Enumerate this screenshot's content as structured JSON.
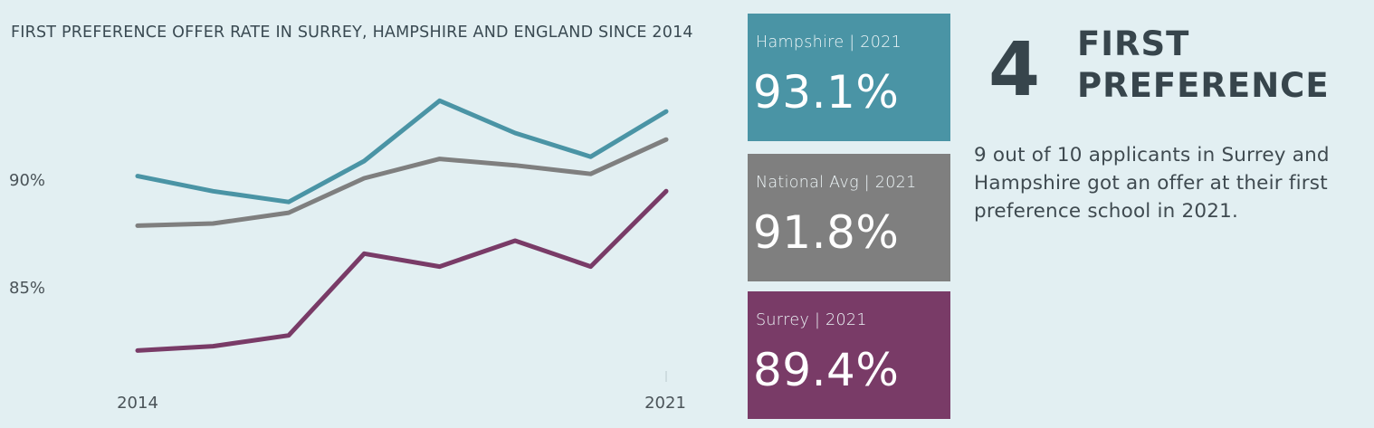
{
  "title": "FIRST PREFERENCE OFFER RATE IN SURREY, HAMPSHIRE AND ENGLAND SINCE 2014",
  "chart_data": {
    "type": "line",
    "title": "FIRST PREFERENCE OFFER RATE IN SURREY, HAMPSHIRE AND ENGLAND SINCE 2014",
    "xlabel": "",
    "ylabel": "",
    "x": [
      2014,
      2015,
      2016,
      2017,
      2018,
      2019,
      2020,
      2021
    ],
    "x_tick_labels": [
      "2014",
      "2021"
    ],
    "y_tick_labels": [
      "90%",
      "85%"
    ],
    "y_ticks": [
      90,
      85
    ],
    "ylim": [
      80.2,
      96.2
    ],
    "grid": false,
    "series": [
      {
        "key": "hampshire",
        "color": "#4a94a5",
        "values": [
          90.1,
          89.4,
          88.9,
          90.8,
          93.6,
          92.1,
          91.0,
          93.1
        ]
      },
      {
        "key": "national",
        "color": "#7f7f7f",
        "values": [
          87.8,
          87.9,
          88.4,
          90.0,
          90.9,
          90.6,
          90.2,
          91.8
        ]
      },
      {
        "key": "surrey",
        "color": "#793b67",
        "values": [
          82.0,
          82.2,
          82.7,
          86.5,
          85.9,
          87.1,
          85.9,
          89.4
        ]
      }
    ]
  },
  "kpis": [
    {
      "label": "Hampshire | 2021",
      "value": "93.1%",
      "color": "#4a94a5"
    },
    {
      "label": "National Avg | 2021",
      "value": "91.8%",
      "color": "#7f7f7f"
    },
    {
      "label": "Surrey | 2021",
      "value": "89.4%",
      "color": "#793b67"
    }
  ],
  "rank": {
    "number": "4",
    "title_line1": "FIRST",
    "title_line2": "PREFERENCE"
  },
  "description": "9 out of 10 applicants in Surrey and Hampshire got an offer at their first preference school in 2021."
}
